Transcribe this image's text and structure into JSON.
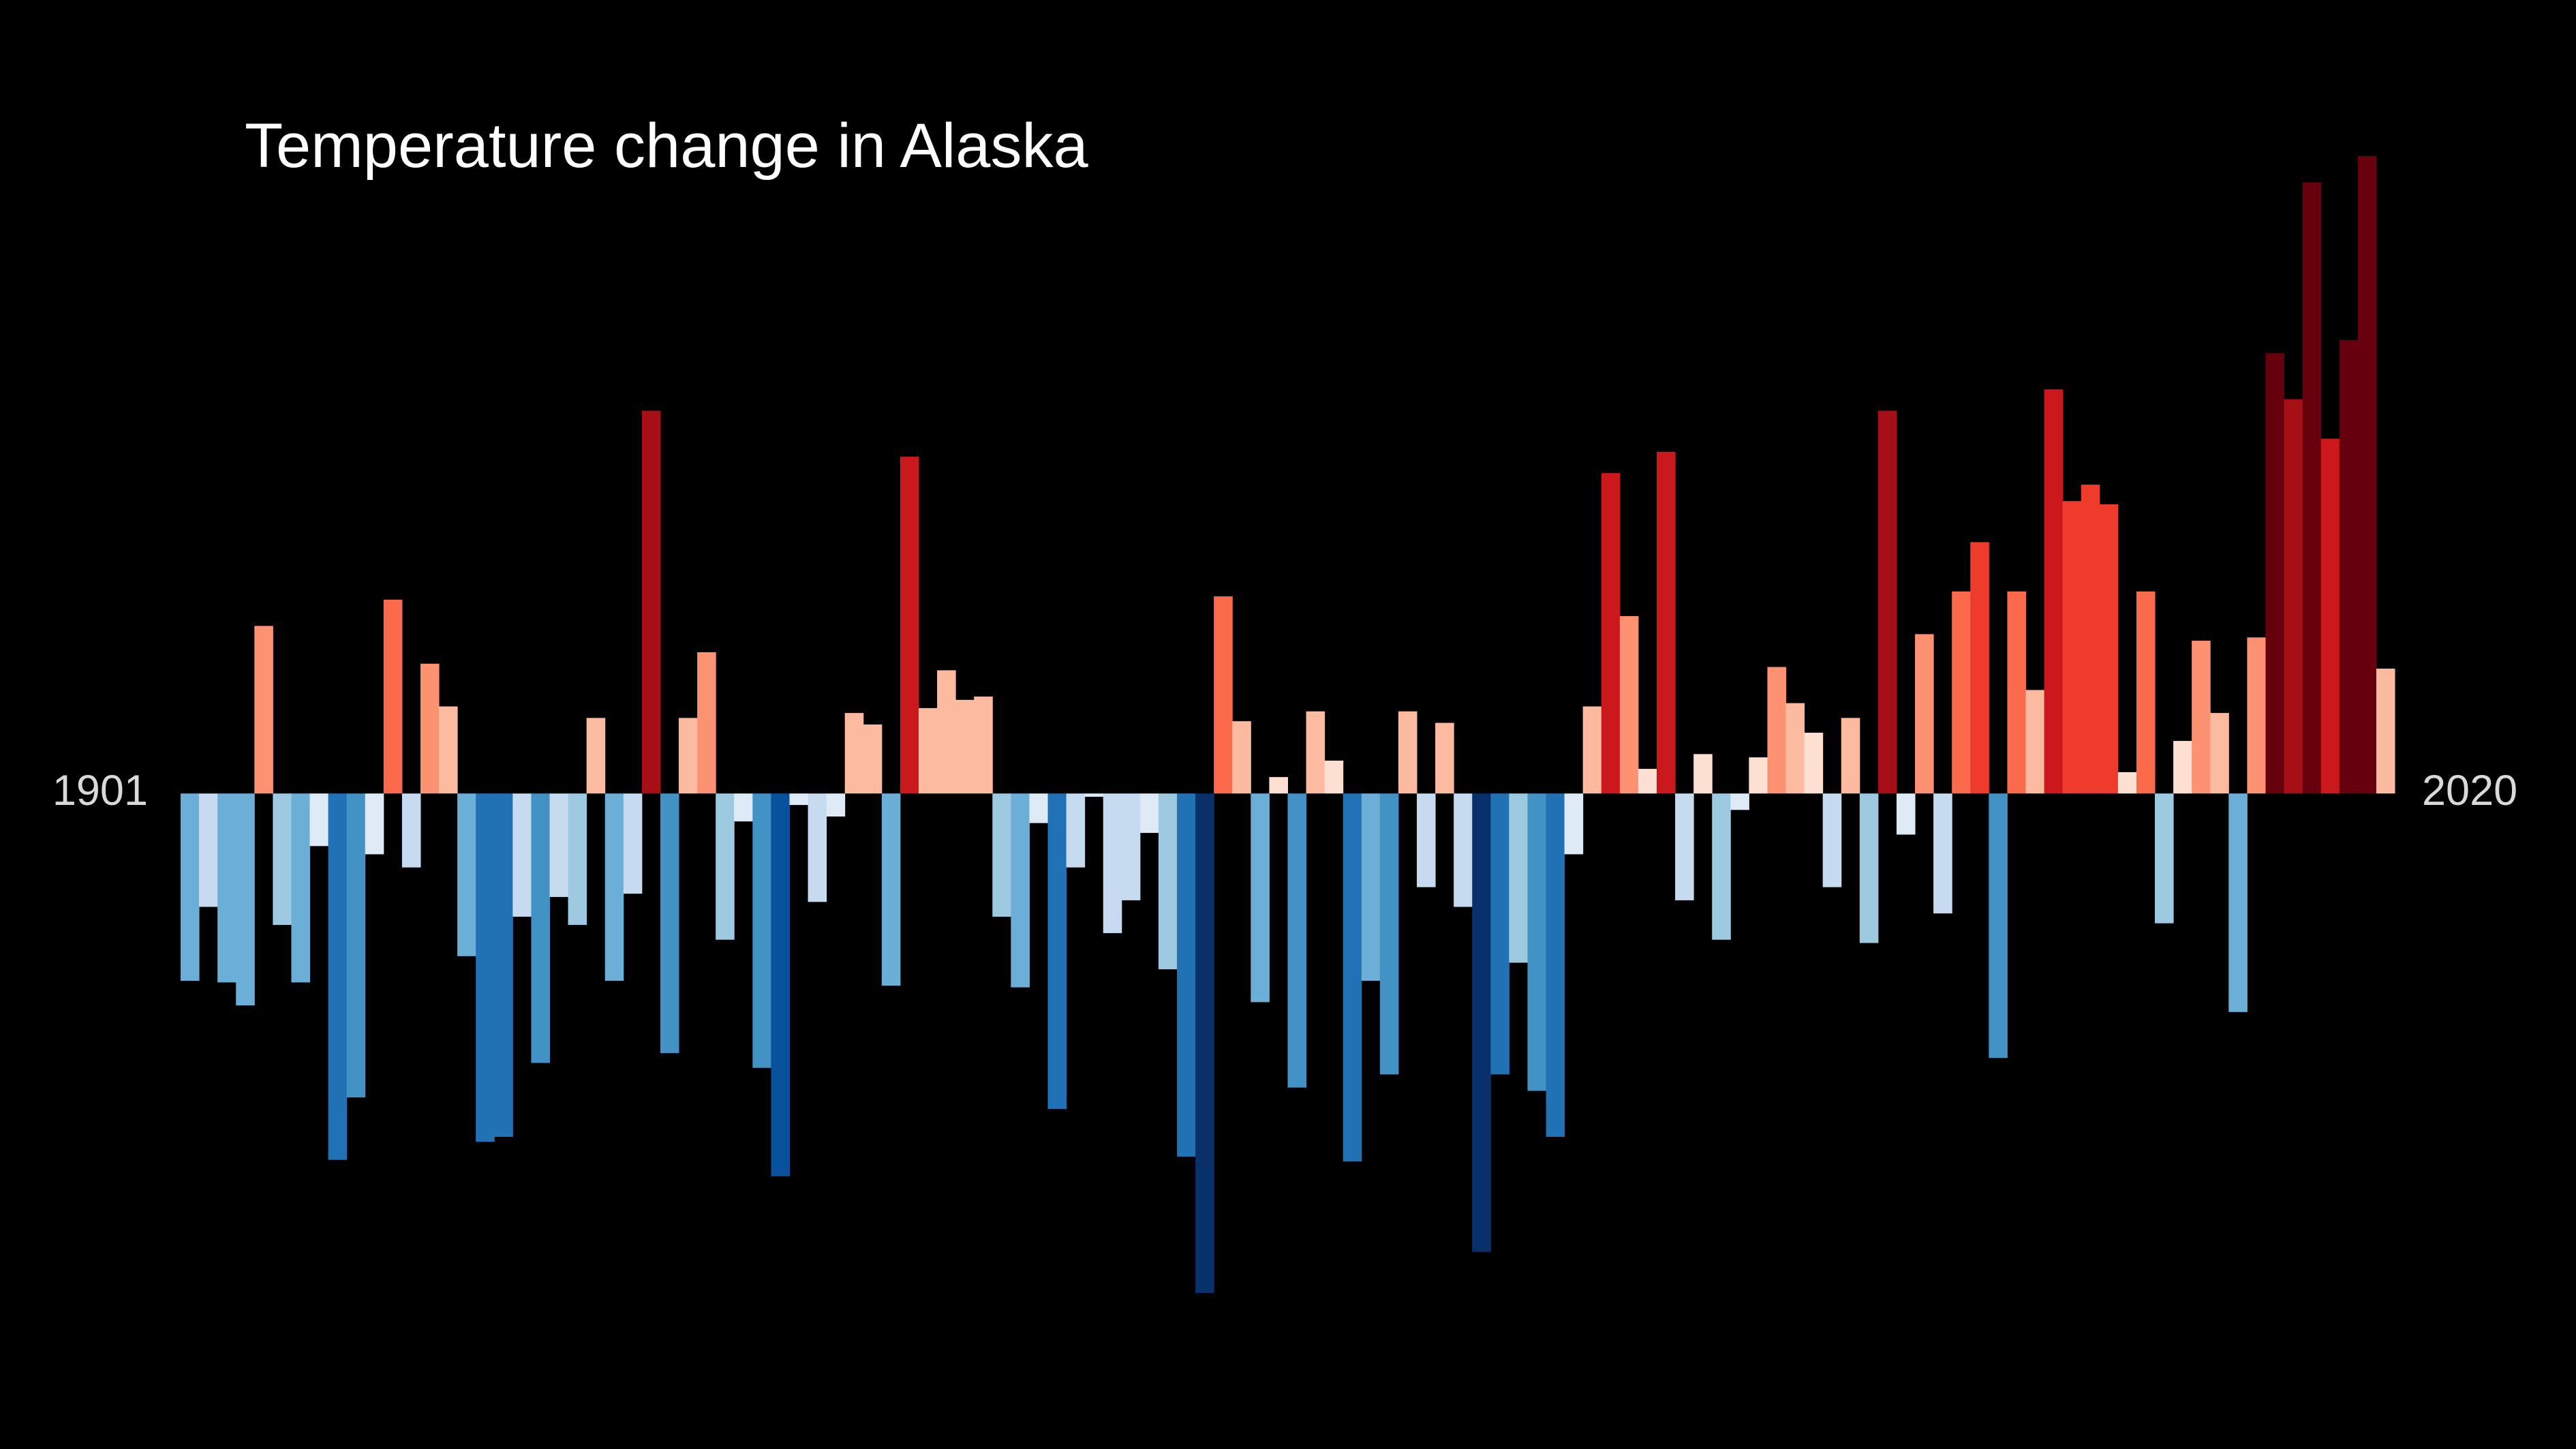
{
  "chart_data": {
    "type": "bar",
    "title": "Temperature change in Alaska",
    "categories": [
      "1901",
      null,
      null,
      null,
      null,
      null,
      null,
      null,
      null,
      null,
      null,
      null,
      null,
      null,
      null,
      null,
      null,
      null,
      null,
      null,
      null,
      null,
      null,
      null,
      null,
      null,
      null,
      null,
      null,
      null,
      null,
      null,
      null,
      null,
      null,
      null,
      null,
      null,
      null,
      null,
      null,
      null,
      null,
      null,
      null,
      null,
      null,
      null,
      null,
      null,
      null,
      null,
      null,
      null,
      null,
      null,
      null,
      null,
      null,
      null,
      null,
      null,
      null,
      null,
      null,
      null,
      null,
      null,
      null,
      null,
      null,
      null,
      null,
      null,
      null,
      null,
      null,
      null,
      null,
      null,
      null,
      null,
      null,
      null,
      null,
      null,
      null,
      null,
      null,
      null,
      null,
      null,
      null,
      null,
      null,
      null,
      null,
      null,
      null,
      null,
      null,
      null,
      null,
      null,
      null,
      null,
      null,
      null,
      null,
      null,
      null,
      null,
      null,
      null,
      null,
      null,
      null,
      null,
      null,
      "2020"
    ],
    "values": [
      -1.14,
      -0.69,
      -1.15,
      -1.29,
      1.02,
      -0.8,
      -1.15,
      -0.32,
      -2.23,
      -1.85,
      -0.37,
      1.18,
      -0.45,
      0.79,
      0.53,
      -0.99,
      -2.12,
      -2.09,
      -0.75,
      -1.64,
      -0.63,
      -0.8,
      0.46,
      -1.14,
      -0.61,
      2.33,
      -1.58,
      0.46,
      0.86,
      -0.89,
      -0.17,
      -1.67,
      -2.33,
      -0.07,
      -0.66,
      -0.14,
      0.49,
      0.42,
      -1.17,
      2.05,
      0.52,
      0.75,
      0.57,
      0.59,
      -0.75,
      -1.18,
      -0.18,
      -1.92,
      -0.45,
      -0.02,
      -0.85,
      -0.65,
      -0.24,
      -1.07,
      -2.21,
      -3.04,
      1.2,
      0.44,
      -1.27,
      0.1,
      -1.79,
      0.5,
      0.2,
      -2.24,
      -1.14,
      -1.71,
      0.5,
      -0.57,
      0.43,
      -0.69,
      -2.79,
      -1.71,
      -1.03,
      -1.81,
      -2.09,
      -0.37,
      0.53,
      1.95,
      1.08,
      0.15,
      2.08,
      -0.65,
      0.24,
      -0.89,
      -0.1,
      0.22,
      0.77,
      0.55,
      0.37,
      -0.57,
      0.46,
      -0.91,
      2.33,
      -0.25,
      0.97,
      -0.73,
      1.23,
      1.53,
      -1.61,
      1.23,
      0.63,
      2.46,
      1.78,
      1.88,
      1.76,
      0.13,
      1.23,
      -0.79,
      0.32,
      0.93,
      0.49,
      -1.33,
      0.95,
      2.68,
      2.4,
      3.72,
      2.16,
      2.76,
      3.88,
      0.76
    ],
    "colors": [
      "#6baed6",
      "#c6dbef",
      "#6baed6",
      "#6baed6",
      "#fc9272",
      "#9ecae1",
      "#6baed6",
      "#deebf7",
      "#2171b5",
      "#4292c6",
      "#deebf7",
      "#fb6a4a",
      "#c6dbef",
      "#fc9272",
      "#fcbba1",
      "#6baed6",
      "#2171b5",
      "#2171b5",
      "#c6dbef",
      "#4292c6",
      "#c6dbef",
      "#9ecae1",
      "#fcbba1",
      "#6baed6",
      "#c6dbef",
      "#a50f15",
      "#4292c6",
      "#fcbba1",
      "#fc9272",
      "#9ecae1",
      "#deebf7",
      "#4292c6",
      "#08519c",
      "#deebf7",
      "#c6dbef",
      "#deebf7",
      "#fcbba1",
      "#fcbba1",
      "#6baed6",
      "#cb181d",
      "#fcbba1",
      "#fcbba1",
      "#fcbba1",
      "#fcbba1",
      "#9ecae1",
      "#6baed6",
      "#deebf7",
      "#2171b5",
      "#c6dbef",
      "#deebf7",
      "#c6dbef",
      "#c6dbef",
      "#deebf7",
      "#9ecae1",
      "#2171b5",
      "#08306b",
      "#fb6a4a",
      "#fcbba1",
      "#6baed6",
      "#fee0d2",
      "#4292c6",
      "#fcbba1",
      "#fee0d2",
      "#2171b5",
      "#6baed6",
      "#4292c6",
      "#fcbba1",
      "#c6dbef",
      "#fcbba1",
      "#c6dbef",
      "#08306b",
      "#2171b5",
      "#9ecae1",
      "#4292c6",
      "#2171b5",
      "#deebf7",
      "#fcbba1",
      "#cb181d",
      "#fc9272",
      "#fee0d2",
      "#cb181d",
      "#c6dbef",
      "#fee0d2",
      "#9ecae1",
      "#deebf7",
      "#fee0d2",
      "#fc9272",
      "#fcbba1",
      "#fee0d2",
      "#c6dbef",
      "#fcbba1",
      "#9ecae1",
      "#a50f15",
      "#deebf7",
      "#fc9272",
      "#c6dbef",
      "#fb6a4a",
      "#ef3b2c",
      "#4292c6",
      "#fb6a4a",
      "#fcbba1",
      "#cb181d",
      "#ef3b2c",
      "#ef3b2c",
      "#ef3b2c",
      "#fee0d2",
      "#fb6a4a",
      "#9ecae1",
      "#fee0d2",
      "#fc9272",
      "#fcbba1",
      "#6baed6",
      "#fc9272",
      "#67000d",
      "#a50f15",
      "#67000d",
      "#cb181d",
      "#67000d",
      "#67000d",
      "#fcbba1"
    ],
    "ylim": [
      -3.99,
      4.83
    ]
  }
}
